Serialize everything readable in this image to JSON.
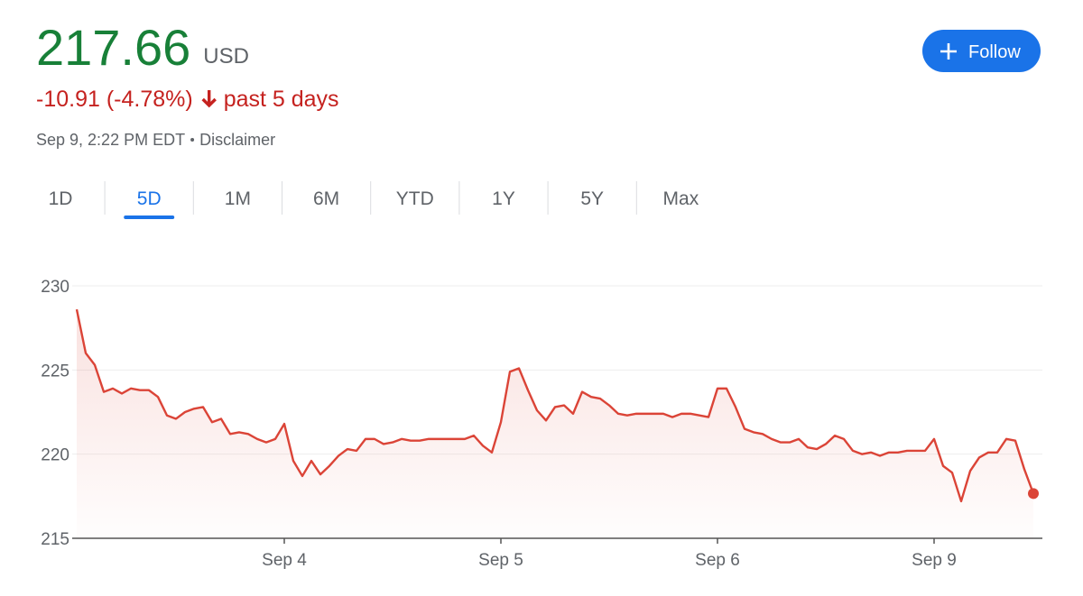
{
  "header": {
    "price": "217.66",
    "currency": "USD",
    "change": "-10.91 (-4.78%)",
    "period": "past 5 days",
    "timestamp": "Sep 9, 2:22 PM EDT",
    "disclaimer": "Disclaimer",
    "follow": "Follow"
  },
  "tabs": {
    "items": [
      "1D",
      "5D",
      "1M",
      "6M",
      "YTD",
      "1Y",
      "5Y",
      "Max"
    ],
    "selected": 1
  },
  "chart_data": {
    "type": "line",
    "color": "#db4437",
    "grid": true,
    "categories": [
      null,
      null,
      null,
      null,
      null,
      null,
      null,
      null,
      null,
      null,
      null,
      null,
      null,
      null,
      null,
      null,
      null,
      null,
      null,
      null,
      null,
      null,
      null,
      "Sep 4",
      null,
      null,
      null,
      null,
      null,
      null,
      null,
      null,
      null,
      null,
      null,
      null,
      null,
      null,
      null,
      null,
      null,
      null,
      null,
      null,
      null,
      null,
      null,
      "Sep 5",
      null,
      null,
      null,
      null,
      null,
      null,
      null,
      null,
      null,
      null,
      null,
      null,
      null,
      null,
      null,
      null,
      null,
      null,
      null,
      null,
      null,
      null,
      null,
      "Sep 6",
      null,
      null,
      null,
      null,
      null,
      null,
      null,
      null,
      null,
      null,
      null,
      null,
      null,
      null,
      null,
      null,
      null,
      null,
      null,
      null,
      null,
      null,
      null,
      "Sep 9",
      null,
      null,
      null,
      null,
      null,
      null,
      null,
      null,
      null,
      null,
      null
    ],
    "values": [
      228.6,
      226.0,
      225.3,
      223.7,
      223.9,
      223.6,
      223.9,
      223.8,
      223.8,
      223.4,
      222.3,
      222.1,
      222.5,
      222.7,
      222.8,
      221.9,
      222.1,
      221.2,
      221.3,
      221.2,
      220.9,
      220.7,
      220.9,
      221.8,
      219.6,
      218.7,
      219.6,
      218.8,
      219.3,
      219.9,
      220.3,
      220.2,
      220.9,
      220.9,
      220.6,
      220.7,
      220.9,
      220.8,
      220.8,
      220.9,
      220.9,
      220.9,
      220.9,
      220.9,
      221.1,
      220.5,
      220.1,
      221.9,
      224.9,
      225.1,
      223.8,
      222.6,
      222.0,
      222.8,
      222.9,
      222.4,
      223.7,
      223.4,
      223.3,
      222.9,
      222.4,
      222.3,
      222.4,
      222.4,
      222.4,
      222.4,
      222.2,
      222.4,
      222.4,
      222.3,
      222.2,
      223.9,
      223.9,
      222.8,
      221.5,
      221.3,
      221.2,
      220.9,
      220.7,
      220.7,
      220.9,
      220.4,
      220.3,
      220.6,
      221.1,
      220.9,
      220.2,
      220.0,
      220.1,
      219.9,
      220.1,
      220.1,
      220.2,
      220.2,
      220.2,
      220.9,
      219.3,
      218.9,
      217.2,
      219.0,
      219.8,
      220.1,
      220.1,
      220.9,
      220.8,
      219.1,
      217.66
    ],
    "ylim": [
      215,
      230
    ],
    "yticks": [
      215,
      220,
      225,
      230
    ]
  }
}
